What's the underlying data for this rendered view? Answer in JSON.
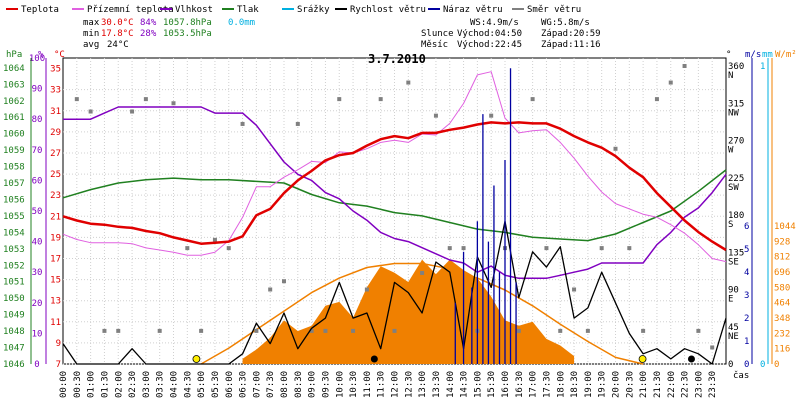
{
  "title": "3.7.2010",
  "colors": {
    "teplota": "#e00000",
    "pocitova": "#e060e0",
    "vlhkost": "#8000c0",
    "tlak": "#208020",
    "srazky": "#00b0e0",
    "rychlost": "#000000",
    "naraz": "#0000a0",
    "smer": "#808080",
    "sun": "#f08000",
    "axis_hpa": "#208020",
    "axis_pct": "#8000c0",
    "axis_c": "#e00000",
    "axis_ms": "#0000a0",
    "axis_mm": "#00b0e0",
    "axis_wm2": "#f08000"
  },
  "legend": [
    {
      "id": "teplota",
      "label": "Teplota"
    },
    {
      "id": "pocitova",
      "label": "Přízemní teplota"
    },
    {
      "id": "vlhkost",
      "label": "Vlhkost"
    },
    {
      "id": "tlak",
      "label": "Tlak"
    },
    {
      "id": "srazky",
      "label": "Srážky"
    },
    {
      "id": "rychlost",
      "label": "Rychlost větru"
    },
    {
      "id": "naraz",
      "label": "Náraz větru"
    },
    {
      "id": "smer",
      "label": "Směr větru"
    }
  ],
  "stats": {
    "max": {
      "label": "max",
      "t": "30.0°C",
      "h": "84%",
      "p": "1057.8hPa",
      "r": "0.0mm"
    },
    "min": {
      "label": "min",
      "t": "17.8°C",
      "h": "28%",
      "p": "1053.5hPa"
    },
    "avg": {
      "label": "avg",
      "t": "24°C"
    }
  },
  "wind": {
    "ws": "WS:4.9m/s",
    "wg": "WG:5.8m/s"
  },
  "sun": {
    "label": "Slunce",
    "rise": "Východ:04:50",
    "set": "Západ:20:59"
  },
  "moon": {
    "label": "Měsíc",
    "rise": "Východ:22:45",
    "set": "Západ:11:16"
  },
  "axis_units": {
    "hpa": "hPa",
    "pct": "%",
    "c": "°C",
    "deg": "°",
    "ms": "m/s",
    "mm": "mm",
    "wm2": "W/m²",
    "time": "čas"
  },
  "axes": {
    "hpa": [
      "1064",
      "1063",
      "1062",
      "1061",
      "1060",
      "1059",
      "1058",
      "1057",
      "1056",
      "1055",
      "1054",
      "1053",
      "1052",
      "1051",
      "1050",
      "1049",
      "1048",
      "1047",
      "1046"
    ],
    "pct": [
      "100",
      "90",
      "80",
      "70",
      "60",
      "50",
      "40",
      "30",
      "20",
      "10",
      "0"
    ],
    "c": [
      "35",
      "33",
      "31",
      "29",
      "27",
      "25",
      "23",
      "21",
      "19",
      "17",
      "15",
      "13",
      "11",
      "9",
      "7"
    ],
    "deg": [
      {
        "v": "360",
        "d": "N"
      },
      {
        "v": "315",
        "d": "NW"
      },
      {
        "v": "270",
        "d": "W"
      },
      {
        "v": "225",
        "d": "SW"
      },
      {
        "v": "180",
        "d": "S"
      },
      {
        "v": "135",
        "d": "SE"
      },
      {
        "v": "90",
        "d": "E"
      },
      {
        "v": "45",
        "d": "NE"
      },
      {
        "v": "0",
        "d": ""
      }
    ],
    "ms": [
      "6",
      "5",
      "4",
      "3",
      "2",
      "1",
      "0"
    ],
    "mm": [
      "1",
      "0"
    ],
    "wm2": [
      "1044",
      "928",
      "812",
      "696",
      "580",
      "464",
      "348",
      "232",
      "116",
      "0"
    ]
  },
  "time_labels": [
    "00:00",
    "00:30",
    "01:00",
    "01:30",
    "02:00",
    "02:30",
    "03:00",
    "03:30",
    "04:00",
    "04:30",
    "05:00",
    "05:30",
    "06:00",
    "06:30",
    "07:00",
    "07:30",
    "08:00",
    "08:30",
    "09:00",
    "09:30",
    "10:00",
    "10:30",
    "11:00",
    "11:30",
    "12:00",
    "12:30",
    "13:00",
    "13:30",
    "14:00",
    "14:30",
    "15:00",
    "15:30",
    "16:00",
    "16:30",
    "17:00",
    "17:30",
    "18:00",
    "18:30",
    "19:00",
    "19:30",
    "20:00",
    "20:30",
    "21:00",
    "21:30",
    "22:00",
    "22:30",
    "23:00",
    "23:30"
  ],
  "chart_data": {
    "type": "line",
    "title": "3.7.2010",
    "x_unit": "hour",
    "xlim": [
      0,
      24
    ],
    "ylim_temperature": [
      7,
      36
    ],
    "ylim_humidity": [
      0,
      100
    ],
    "ylim_pressure": [
      1046,
      1064.6
    ],
    "ylim_wind_speed": [
      0,
      6
    ],
    "ylim_solar": [
      0,
      1044
    ],
    "series": [
      {
        "name": "Teplota",
        "unit": "°C",
        "x": [
          0,
          0.5,
          1,
          1.5,
          2,
          2.5,
          3,
          3.5,
          4,
          4.5,
          5,
          5.5,
          6,
          6.5,
          7,
          7.5,
          8,
          8.5,
          9,
          9.5,
          10,
          10.5,
          11,
          11.5,
          12,
          12.5,
          13,
          13.5,
          14,
          14.5,
          15,
          15.5,
          16,
          16.5,
          17,
          17.5,
          18,
          18.5,
          19,
          19.5,
          20,
          20.5,
          21,
          21.5,
          22,
          22.5,
          23,
          23.5,
          24
        ],
        "values": [
          21.0,
          20.6,
          20.3,
          20.2,
          20.0,
          19.9,
          19.6,
          19.4,
          19.0,
          18.7,
          18.4,
          18.5,
          18.6,
          19.1,
          21.1,
          21.7,
          23.2,
          24.4,
          25.3,
          26.3,
          26.8,
          27.0,
          27.7,
          28.3,
          28.6,
          28.4,
          28.9,
          28.9,
          29.2,
          29.4,
          29.7,
          29.9,
          29.8,
          29.9,
          29.8,
          29.8,
          29.3,
          28.6,
          28.0,
          27.5,
          26.7,
          25.6,
          24.7,
          23.2,
          21.9,
          20.6,
          19.5,
          18.6,
          17.8
        ]
      },
      {
        "name": "Přízemní teplota",
        "unit": "°C",
        "x": [
          0,
          0.5,
          1,
          1.5,
          2,
          2.5,
          3,
          3.5,
          4,
          4.5,
          5,
          5.5,
          6,
          6.5,
          7,
          7.5,
          8,
          8.5,
          9,
          9.5,
          10,
          10.5,
          11,
          11.5,
          12,
          12.5,
          13,
          13.5,
          14,
          14.5,
          15,
          15.5,
          16,
          16.5,
          17,
          17.5,
          18,
          18.5,
          19,
          19.5,
          20,
          20.5,
          21,
          21.5,
          22,
          22.5,
          23,
          23.5,
          24
        ],
        "values": [
          19.3,
          18.8,
          18.5,
          18.5,
          18.5,
          18.4,
          18.0,
          17.8,
          17.6,
          17.3,
          17.3,
          17.6,
          18.7,
          20.9,
          23.8,
          23.8,
          24.7,
          25.4,
          26.2,
          26.1,
          27.1,
          27.0,
          27.4,
          28.0,
          28.2,
          28.0,
          28.8,
          28.7,
          29.8,
          31.7,
          34.4,
          34.7,
          30.3,
          28.9,
          29.1,
          29.2,
          28.0,
          26.5,
          24.8,
          23.3,
          22.2,
          21.7,
          21.2,
          20.9,
          20.2,
          19.4,
          18.3,
          17.0,
          16.7
        ]
      },
      {
        "name": "Vlhkost",
        "unit": "%",
        "x": [
          0,
          0.5,
          1,
          1.5,
          2,
          2.5,
          3,
          3.5,
          4,
          4.5,
          5,
          5.5,
          6,
          6.5,
          7,
          7.5,
          8,
          8.5,
          9,
          9.5,
          10,
          10.5,
          11,
          11.5,
          12,
          12.5,
          13,
          13.5,
          14,
          14.5,
          15,
          15.5,
          16,
          16.5,
          17,
          17.5,
          18,
          18.5,
          19,
          19.5,
          20,
          20.5,
          21,
          21.5,
          22,
          22.5,
          23,
          23.5,
          24
        ],
        "values": [
          80,
          80,
          80,
          82,
          84,
          84,
          84,
          84,
          84,
          84,
          84,
          82,
          82,
          82,
          78,
          72,
          66,
          62,
          60,
          56,
          54,
          50,
          47,
          43,
          41,
          40,
          38,
          36,
          34,
          33,
          30,
          32,
          29,
          28,
          28,
          28,
          29,
          30,
          31,
          33,
          33,
          33,
          33,
          39,
          43,
          48,
          51,
          56,
          62
        ]
      },
      {
        "name": "Tlak",
        "unit": "hPa",
        "x": [
          0,
          1,
          2,
          3,
          4,
          5,
          6,
          7,
          8,
          9,
          10,
          11,
          12,
          13,
          14,
          15,
          16,
          17,
          18,
          19,
          20,
          21,
          22,
          23,
          24
        ],
        "values": [
          1056.1,
          1056.6,
          1057.0,
          1057.2,
          1057.3,
          1057.2,
          1057.2,
          1057.1,
          1057.0,
          1056.3,
          1055.8,
          1055.6,
          1055.2,
          1055.0,
          1054.6,
          1054.2,
          1054.0,
          1053.7,
          1053.6,
          1053.5,
          1053.9,
          1054.6,
          1055.3,
          1056.5,
          1057.8
        ]
      },
      {
        "name": "Rychlost větru",
        "unit": "m/s",
        "x": [
          0,
          0.5,
          1,
          1.5,
          2,
          2.5,
          3,
          3.5,
          4,
          4.5,
          5,
          5.5,
          6,
          6.5,
          7,
          7.5,
          8,
          8.5,
          9,
          9.5,
          10,
          10.5,
          11,
          11.5,
          12,
          12.5,
          13,
          13.5,
          14,
          14.5,
          15,
          15.5,
          16,
          16.5,
          17,
          17.5,
          18,
          18.5,
          19,
          19.5,
          20,
          20.5,
          21,
          21.5,
          22,
          22.5,
          23,
          23.5,
          24
        ],
        "values": [
          0.4,
          0.0,
          0.0,
          0.0,
          0.0,
          0.3,
          0.0,
          0.0,
          0.0,
          0.0,
          0.0,
          0.0,
          0.0,
          0.2,
          0.8,
          0.4,
          1.0,
          0.3,
          0.7,
          0.9,
          1.6,
          0.9,
          1.0,
          0.3,
          1.6,
          1.4,
          1.0,
          2.0,
          1.8,
          0.3,
          2.1,
          1.5,
          2.8,
          1.3,
          2.2,
          1.9,
          2.3,
          0.9,
          1.1,
          1.8,
          1.2,
          0.6,
          0.2,
          0.3,
          0.1,
          0.3,
          0.2,
          0.0,
          0.9
        ]
      },
      {
        "name": "Náraz větru",
        "unit": "m/s",
        "x": [
          14.2,
          14.5,
          14.8,
          15.0,
          15.2,
          15.4,
          15.6,
          15.8,
          16.0,
          16.2,
          16.4
        ],
        "values": [
          1.2,
          2.2,
          1.5,
          2.8,
          4.9,
          2.4,
          3.5,
          1.8,
          4.0,
          5.8,
          1.6
        ]
      },
      {
        "name": "Směr větru",
        "unit": "°",
        "x": [
          0.5,
          1.0,
          1.5,
          2.0,
          2.5,
          3.0,
          3.5,
          4.0,
          4.5,
          5.0,
          5.5,
          6.0,
          6.5,
          7.0,
          7.5,
          8.0,
          8.5,
          9.0,
          9.5,
          10.0,
          10.5,
          11.0,
          11.5,
          12.0,
          12.5,
          13.0,
          13.5,
          14.0,
          14.5,
          15.0,
          15.5,
          16.0,
          16.5,
          17.0,
          17.5,
          18.0,
          18.5,
          19.0,
          19.5,
          20.0,
          20.5,
          21.0,
          21.5,
          22.0,
          22.5,
          23.0,
          23.5
        ],
        "values": [
          320,
          305,
          40,
          40,
          305,
          320,
          40,
          315,
          140,
          40,
          150,
          140,
          290,
          40,
          90,
          100,
          290,
          40,
          40,
          320,
          40,
          90,
          320,
          40,
          340,
          110,
          300,
          140,
          140,
          40,
          300,
          140,
          40,
          320,
          140,
          40,
          90,
          40,
          140,
          260,
          140,
          40,
          320,
          340,
          360,
          40,
          20
        ]
      },
      {
        "name": "Slunce (W/m²)",
        "unit": "W/m²",
        "x": [
          5,
          6,
          7,
          8,
          9,
          10,
          11,
          12,
          13,
          14,
          15,
          16,
          17,
          18,
          19,
          20,
          21
        ],
        "values": [
          0,
          120,
          260,
          400,
          540,
          650,
          730,
          760,
          760,
          720,
          650,
          560,
          440,
          300,
          170,
          50,
          0
        ]
      },
      {
        "name": "Sluneční záření",
        "unit": "W/m²",
        "x": [
          6.5,
          7,
          7.5,
          8,
          8.5,
          9,
          9.5,
          10,
          10.5,
          11,
          11.5,
          12,
          12.5,
          13,
          13.5,
          14,
          14.5,
          15,
          15.5,
          16,
          16.5,
          17,
          17.5,
          18,
          18.5
        ],
        "values": [
          40,
          110,
          200,
          330,
          250,
          290,
          440,
          470,
          350,
          580,
          740,
          690,
          620,
          790,
          680,
          790,
          710,
          650,
          510,
          330,
          290,
          320,
          190,
          140,
          60
        ]
      }
    ]
  }
}
